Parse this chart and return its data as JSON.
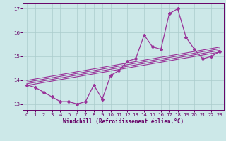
{
  "x": [
    0,
    1,
    2,
    3,
    4,
    5,
    6,
    7,
    8,
    9,
    10,
    11,
    12,
    13,
    14,
    15,
    16,
    17,
    18,
    19,
    20,
    21,
    22,
    23
  ],
  "y_main": [
    13.8,
    13.7,
    13.5,
    13.3,
    13.1,
    13.1,
    13.0,
    13.1,
    13.8,
    13.2,
    14.2,
    14.4,
    14.8,
    14.9,
    15.9,
    15.4,
    15.3,
    16.8,
    17.0,
    15.8,
    15.3,
    14.9,
    15.0,
    15.2
  ],
  "line_color": "#993399",
  "bg_color": "#cce8e8",
  "grid_color": "#aacccc",
  "text_color": "#660066",
  "xlabel": "Windchill (Refroidissement éolien,°C)",
  "ylim": [
    12.75,
    17.25
  ],
  "xlim": [
    -0.5,
    23.5
  ],
  "yticks": [
    13,
    14,
    15,
    16,
    17
  ],
  "xticks": [
    0,
    1,
    2,
    3,
    4,
    5,
    6,
    7,
    8,
    9,
    10,
    11,
    12,
    13,
    14,
    15,
    16,
    17,
    18,
    19,
    20,
    21,
    22,
    23
  ],
  "reg_lines": [
    [
      13.78,
      15.18
    ],
    [
      13.85,
      15.25
    ],
    [
      13.92,
      15.32
    ],
    [
      13.99,
      15.39
    ]
  ]
}
